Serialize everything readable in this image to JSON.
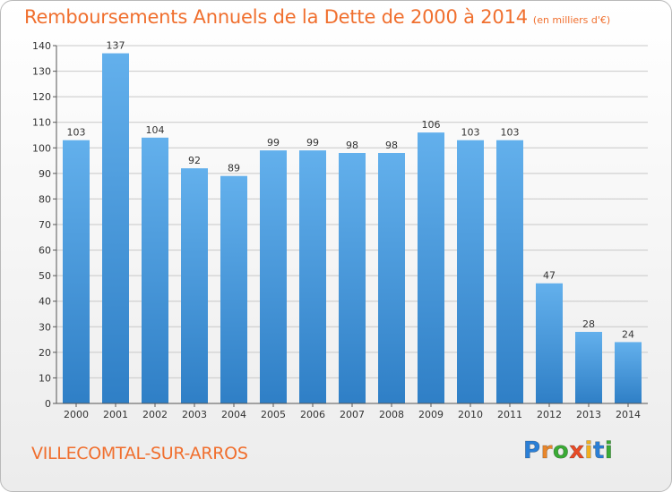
{
  "title": "Remboursements Annuels de la Dette de 2000 à 2014",
  "unit_note": "(en milliers d'€)",
  "commune": "VILLECOMTAL-SUR-ARROS",
  "logo": {
    "letters": [
      "P",
      "r",
      "o",
      "x",
      "i",
      "t",
      "i"
    ],
    "colors": [
      "#2b7fd6",
      "#e8862b",
      "#3aaa35",
      "#e84b26",
      "#f2b01f",
      "#2b7fd6",
      "#3aaa35"
    ]
  },
  "colors": {
    "bar_light": "#63b0ec",
    "bar_dark": "#2f7fc6",
    "title": "#f06f2e"
  },
  "chart_data": {
    "type": "bar",
    "title": "Remboursements Annuels de la Dette de 2000 à 2014",
    "categories": [
      "2000",
      "2001",
      "2002",
      "2003",
      "2004",
      "2005",
      "2006",
      "2007",
      "2008",
      "2009",
      "2010",
      "2011",
      "2012",
      "2013",
      "2014"
    ],
    "values": [
      103,
      137,
      104,
      92,
      89,
      99,
      99,
      98,
      98,
      106,
      103,
      103,
      47,
      28,
      24
    ],
    "ylim": [
      0,
      140
    ],
    "yticks": [
      0,
      10,
      20,
      30,
      40,
      50,
      60,
      70,
      80,
      90,
      100,
      110,
      120,
      130,
      140
    ],
    "grid": true,
    "xlabel": "",
    "ylabel": ""
  }
}
